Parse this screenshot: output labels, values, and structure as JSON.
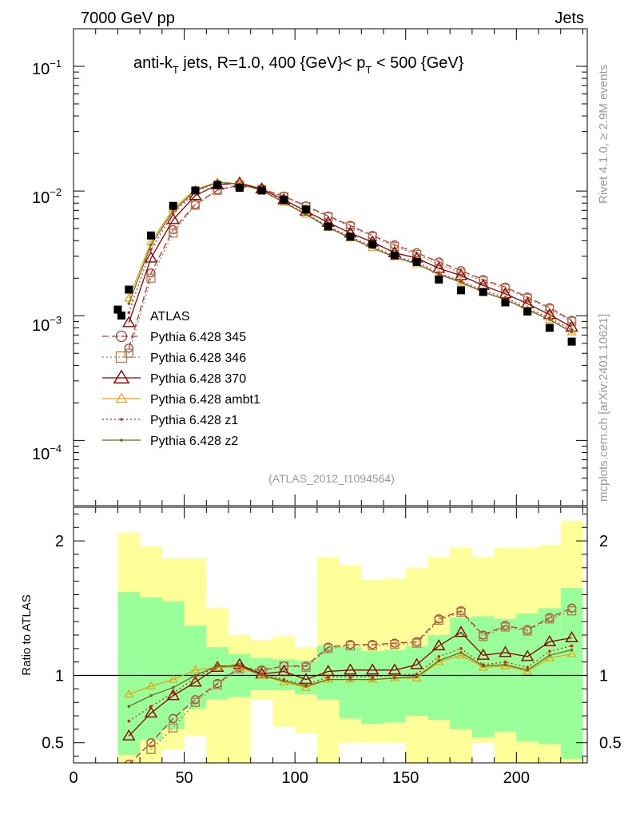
{
  "header": {
    "left": "7000 GeV pp",
    "right": "Jets"
  },
  "side_labels": {
    "rivet": "Rivet 4.1.0, ≥ 2.9M events",
    "mcplots": "mcplots.cern.ch [arXiv:2401.10621]"
  },
  "chart_data": [
    {
      "type": "scatter",
      "panel": "main",
      "title_parts": {
        "a": "anti-k",
        "a_sub": "T",
        "b": " jets, R=1.0, 400 {GeV}< p",
        "b_sub": "T",
        "c": " < 500 {GeV}"
      },
      "yscale": "log",
      "ylim": [
        3e-05,
        0.2
      ],
      "xlim": [
        0,
        232
      ],
      "ytick_labels": [
        {
          "base": "10",
          "exp": "−1"
        },
        {
          "base": "10",
          "exp": "−2"
        },
        {
          "base": "10",
          "exp": "−3"
        },
        {
          "base": "10",
          "exp": "−4"
        }
      ],
      "analysis_label": "(ATLAS_2012_I1094564)",
      "legend": [
        "ATLAS",
        "Pythia 6.428 345",
        "Pythia 6.428 346",
        "Pythia 6.428 370",
        "Pythia 6.428 ambt1",
        "Pythia 6.428 z1",
        "Pythia 6.428 z2"
      ],
      "data": {
        "name": "ATLAS",
        "x": [
          20,
          25,
          35,
          45,
          55,
          65,
          75,
          85,
          95,
          105,
          115,
          125,
          135,
          145,
          155,
          165,
          175,
          185,
          195,
          205,
          215,
          225
        ],
        "y": [
          0.00112,
          0.00162,
          0.0044,
          0.0076,
          0.0101,
          0.0112,
          0.0106,
          0.0101,
          0.0085,
          0.0071,
          0.0052,
          0.0043,
          0.00375,
          0.00305,
          0.0027,
          0.00195,
          0.0016,
          0.00155,
          0.00128,
          0.00108,
          0.0008,
          0.00062
        ]
      },
      "series": [
        {
          "name": "Pythia 6.428 345",
          "color": "#b03a3a",
          "marker": "circle",
          "dash": "8,4",
          "x": [
            25,
            35,
            45,
            55,
            65,
            75,
            85,
            95,
            105,
            115,
            125,
            135,
            145,
            155,
            165,
            175,
            185,
            195,
            205,
            215,
            225
          ],
          "y": [
            0.00055,
            0.0022,
            0.0049,
            0.0078,
            0.0102,
            0.0112,
            0.0104,
            0.0091,
            0.0076,
            0.0063,
            0.0053,
            0.0044,
            0.0037,
            0.0032,
            0.0027,
            0.0023,
            0.00195,
            0.0017,
            0.00141,
            0.00116,
            0.00092
          ]
        },
        {
          "name": "Pythia 6.428 346",
          "color": "#b07a4a",
          "marker": "square",
          "dash": "2,3",
          "x": [
            25,
            35,
            45,
            55,
            65,
            75,
            85,
            95,
            105,
            115,
            125,
            135,
            145,
            155,
            165,
            175,
            185,
            195,
            205,
            215,
            225
          ],
          "y": [
            0.0005,
            0.002,
            0.0046,
            0.0077,
            0.0101,
            0.0111,
            0.0103,
            0.009,
            0.0075,
            0.0062,
            0.0052,
            0.0043,
            0.0036,
            0.0031,
            0.0026,
            0.0022,
            0.0019,
            0.00165,
            0.00138,
            0.00113,
            0.0009
          ]
        },
        {
          "name": "Pythia 6.428 370",
          "color": "#8b0000",
          "marker": "triangle",
          "dash": "",
          "x": [
            25,
            35,
            45,
            55,
            65,
            75,
            85,
            95,
            105,
            115,
            125,
            135,
            145,
            155,
            165,
            175,
            185,
            195,
            205,
            215,
            225
          ],
          "y": [
            0.00088,
            0.0029,
            0.0059,
            0.0092,
            0.0112,
            0.0116,
            0.0104,
            0.0085,
            0.0069,
            0.0056,
            0.0046,
            0.0039,
            0.0032,
            0.0029,
            0.0024,
            0.0021,
            0.00175,
            0.0015,
            0.00125,
            0.00102,
            0.00081
          ]
        },
        {
          "name": "Pythia 6.428 ambt1",
          "color": "#e8a317",
          "marker": "triangle-small",
          "dash": "",
          "x": [
            25,
            35,
            45,
            55,
            65,
            75,
            85,
            95,
            105,
            115,
            125,
            135,
            145,
            155,
            165,
            175,
            185,
            195,
            205,
            215,
            225
          ],
          "y": [
            0.00138,
            0.0039,
            0.0072,
            0.0103,
            0.0118,
            0.0114,
            0.0101,
            0.0081,
            0.0065,
            0.0051,
            0.0042,
            0.0035,
            0.00295,
            0.0026,
            0.00215,
            0.00185,
            0.00155,
            0.00135,
            0.00112,
            0.00093,
            0.00074
          ]
        },
        {
          "name": "Pythia 6.428 z1",
          "color": "#d62020",
          "marker": "dot",
          "dash": "2,3",
          "x": [
            25,
            35,
            45,
            55,
            65,
            75,
            85,
            95,
            105,
            115,
            125,
            135,
            145,
            155,
            165,
            175,
            185,
            195,
            205,
            215,
            225
          ],
          "y": [
            0.00106,
            0.0034,
            0.0066,
            0.0099,
            0.0117,
            0.0114,
            0.0102,
            0.0082,
            0.0066,
            0.0052,
            0.0043,
            0.0036,
            0.003,
            0.0027,
            0.0022,
            0.0019,
            0.0016,
            0.0014,
            0.00115,
            0.00096,
            0.00077
          ]
        },
        {
          "name": "Pythia 6.428 z2",
          "color": "#6b6b1a",
          "marker": "dot",
          "dash": "",
          "x": [
            25,
            35,
            45,
            55,
            65,
            75,
            85,
            95,
            105,
            115,
            125,
            135,
            145,
            155,
            165,
            175,
            185,
            195,
            205,
            215,
            225
          ],
          "y": [
            0.00125,
            0.0037,
            0.0069,
            0.0101,
            0.0117,
            0.0114,
            0.0101,
            0.0081,
            0.0065,
            0.0051,
            0.0042,
            0.0035,
            0.00295,
            0.0026,
            0.00215,
            0.00185,
            0.00155,
            0.00135,
            0.00112,
            0.00093,
            0.00074
          ]
        }
      ]
    },
    {
      "type": "line",
      "panel": "ratio",
      "ylabel": "Ratio to ATLAS",
      "xlim": [
        0,
        232
      ],
      "ylim": [
        0.35,
        2.25
      ],
      "yticks": [
        0.5,
        1,
        2
      ],
      "ytick_labels": [
        "0.5",
        "1",
        "2"
      ],
      "xticks": [
        0,
        50,
        100,
        150,
        200
      ],
      "xtick_labels": [
        "0",
        "50",
        "100",
        "150",
        "200"
      ],
      "bands": {
        "bins": [
          20,
          30,
          40,
          50,
          60,
          70,
          80,
          90,
          100,
          110,
          120,
          130,
          140,
          150,
          160,
          170,
          180,
          190,
          200,
          210,
          220,
          230
        ],
        "green_low": [
          0.41,
          0.52,
          0.6,
          0.75,
          0.82,
          0.84,
          0.89,
          0.89,
          0.86,
          0.82,
          0.68,
          0.64,
          0.65,
          0.7,
          0.67,
          0.6,
          0.54,
          0.58,
          0.51,
          0.49,
          0.38
        ],
        "green_high": [
          1.62,
          1.58,
          1.55,
          1.37,
          1.21,
          1.16,
          1.13,
          1.12,
          1.11,
          1.22,
          1.21,
          1.18,
          1.19,
          1.22,
          1.3,
          1.43,
          1.44,
          1.42,
          1.46,
          1.5,
          1.65
        ],
        "yellow_low": [
          0.28,
          0.33,
          0.45,
          0.55,
          0.28,
          0.29,
          0.82,
          0.62,
          0.57,
          0.28,
          0.5,
          0.5,
          0.5,
          0.25,
          0.25,
          0.25,
          0.5,
          0.25,
          0.25,
          0.25,
          0.25
        ],
        "yellow_high": [
          2.06,
          1.96,
          1.87,
          1.87,
          1.5,
          1.3,
          1.26,
          1.29,
          1.21,
          1.88,
          1.82,
          1.71,
          1.72,
          1.8,
          1.88,
          1.95,
          1.88,
          1.95,
          1.95,
          1.97,
          2.15
        ]
      },
      "reference_line": 1,
      "series": [
        {
          "name": "Pythia 6.428 345",
          "color": "#b03a3a",
          "marker": "circle",
          "dash": "8,4",
          "x": [
            25,
            35,
            45,
            55,
            65,
            75,
            85,
            95,
            105,
            115,
            125,
            135,
            145,
            155,
            165,
            175,
            185,
            195,
            205,
            215,
            225
          ],
          "y": [
            0.34,
            0.5,
            0.68,
            0.82,
            0.94,
            1.06,
            1.04,
            1.07,
            1.07,
            1.21,
            1.23,
            1.23,
            1.24,
            1.25,
            1.42,
            1.48,
            1.3,
            1.37,
            1.34,
            1.43,
            1.5
          ]
        },
        {
          "name": "Pythia 6.428 346",
          "color": "#b07a4a",
          "marker": "square",
          "dash": "2,3",
          "x": [
            35,
            45,
            55,
            65,
            75,
            85,
            95,
            105,
            115,
            125,
            135,
            145,
            155,
            165,
            175,
            185,
            195,
            205,
            215,
            225
          ],
          "y": [
            0.45,
            0.61,
            0.8,
            0.93,
            1.05,
            1.03,
            1.07,
            1.06,
            1.2,
            1.22,
            1.22,
            1.23,
            1.24,
            1.41,
            1.47,
            1.29,
            1.36,
            1.33,
            1.42,
            1.48
          ]
        },
        {
          "name": "Pythia 6.428 370",
          "color": "#8b0000",
          "marker": "triangle",
          "dash": "",
          "x": [
            25,
            35,
            45,
            55,
            65,
            75,
            85,
            95,
            105,
            115,
            125,
            135,
            145,
            155,
            165,
            175,
            185,
            195,
            205,
            215,
            225
          ],
          "y": [
            0.55,
            0.72,
            0.85,
            0.95,
            1.06,
            1.08,
            1.01,
            1.03,
            0.97,
            1.03,
            1.04,
            1.04,
            1.04,
            1.08,
            1.22,
            1.32,
            1.15,
            1.17,
            1.14,
            1.25,
            1.28
          ]
        },
        {
          "name": "Pythia 6.428 ambt1",
          "color": "#e8a317",
          "marker": "triangle-small",
          "dash": "",
          "x": [
            25,
            35,
            45,
            55,
            65,
            75,
            85,
            95,
            105,
            115,
            125,
            135,
            145,
            155,
            165,
            175,
            185,
            195,
            205,
            215,
            225
          ],
          "y": [
            0.86,
            0.92,
            0.97,
            1.04,
            1.06,
            1.06,
            1.0,
            0.95,
            0.91,
            0.97,
            0.97,
            0.97,
            0.98,
            0.98,
            1.1,
            1.15,
            1.06,
            1.07,
            1.03,
            1.13,
            1.16
          ]
        },
        {
          "name": "Pythia 6.428 z1",
          "color": "#d62020",
          "marker": "dot",
          "dash": "2,3",
          "x": [
            25,
            35,
            45,
            55,
            65,
            75,
            85,
            95,
            105,
            115,
            125,
            135,
            145,
            155,
            165,
            175,
            185,
            195,
            205,
            215,
            225
          ],
          "y": [
            0.66,
            0.77,
            0.87,
            0.98,
            1.07,
            1.07,
            1.01,
            0.97,
            0.93,
            0.99,
            0.99,
            0.99,
            1.0,
            1.01,
            1.14,
            1.2,
            1.08,
            1.1,
            1.06,
            1.18,
            1.22
          ]
        },
        {
          "name": "Pythia 6.428 z2",
          "color": "#6b6b1a",
          "marker": "dot",
          "dash": "",
          "x": [
            25,
            35,
            45,
            55,
            65,
            75,
            85,
            95,
            105,
            115,
            125,
            135,
            145,
            155,
            165,
            175,
            185,
            195,
            205,
            215,
            225
          ],
          "y": [
            0.77,
            0.85,
            0.91,
            1.0,
            1.07,
            1.07,
            1.0,
            0.96,
            0.92,
            0.97,
            0.97,
            0.97,
            0.98,
            0.99,
            1.11,
            1.17,
            1.07,
            1.08,
            1.04,
            1.15,
            1.19
          ]
        }
      ]
    }
  ]
}
